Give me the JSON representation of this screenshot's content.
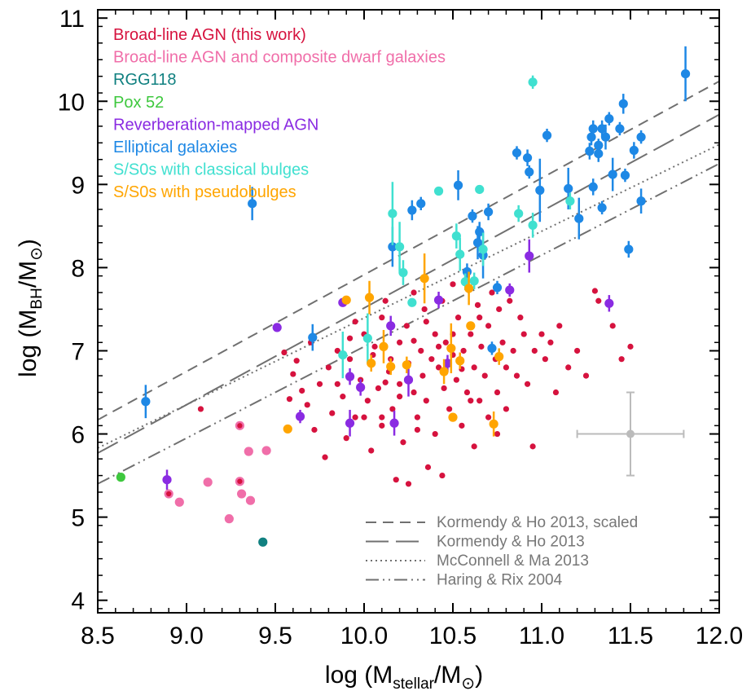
{
  "chart_data": {
    "type": "scatter",
    "xlabel": {
      "main": "log (M",
      "sub": "stellar",
      "mid": "/M",
      "sym": "⊙",
      "end": ")"
    },
    "ylabel": {
      "main": "log (M",
      "sub": "BH",
      "mid": "/M",
      "sym": "⊙",
      "end": ")"
    },
    "xlim": [
      8.5,
      12.0
    ],
    "ylim": [
      3.85,
      11.1
    ],
    "xticks": [
      "8.5",
      "9.0",
      "9.5",
      "10.0",
      "10.5",
      "11.0",
      "11.5",
      "12.0"
    ],
    "yticks": [
      "4",
      "5",
      "6",
      "7",
      "8",
      "9",
      "10",
      "11"
    ],
    "grid": false,
    "legend_position": "top-left",
    "legend": [
      {
        "label": "Broad-line AGN (this work)",
        "color": "#d6123e"
      },
      {
        "label": "Broad-line AGN and composite dwarf galaxies",
        "color": "#f06ea9"
      },
      {
        "label": "RGG118",
        "color": "#108080"
      },
      {
        "label": "Pox 52",
        "color": "#3ec83e"
      },
      {
        "label": "Reverberation-mapped AGN",
        "color": "#8a2be2"
      },
      {
        "label": "Elliptical galaxies",
        "color": "#1e88e5"
      },
      {
        "label": "S/S0s with classical bulges",
        "color": "#40e0d0"
      },
      {
        "label": "S/S0s with pseudobulges",
        "color": "#ffa500"
      }
    ],
    "relations": [
      {
        "label": "Kormendy & Ho 2013, scaled",
        "style": "short-dash",
        "points": [
          [
            8.5,
            6.17
          ],
          [
            12.0,
            10.24
          ]
        ]
      },
      {
        "label": "Kormendy & Ho 2013",
        "style": "long-dash",
        "points": [
          [
            8.5,
            5.77
          ],
          [
            12.0,
            9.84
          ]
        ]
      },
      {
        "label": "McConnell & Ma 2013",
        "style": "dotted",
        "points": [
          [
            8.5,
            5.83
          ],
          [
            12.0,
            9.48
          ]
        ]
      },
      {
        "label": "Haring & Rix 2004",
        "style": "dash-dot-dot",
        "points": [
          [
            8.5,
            5.4
          ],
          [
            12.0,
            9.25
          ]
        ]
      }
    ],
    "typical_error": {
      "x": 11.5,
      "y": 6.0,
      "xerr": 0.3,
      "yerr": 0.5,
      "color": "#bbbbbb"
    },
    "series": [
      {
        "name": "Broad-line AGN (this work)",
        "color": "#d6123e",
        "points": [
          [
            9.08,
            6.3
          ],
          [
            9.3,
            6.1
          ],
          [
            9.55,
            6.98
          ],
          [
            9.58,
            6.42
          ],
          [
            9.6,
            6.72
          ],
          [
            9.62,
            6.88
          ],
          [
            9.65,
            6.52
          ],
          [
            9.68,
            6.35
          ],
          [
            9.7,
            7.1
          ],
          [
            9.72,
            6.05
          ],
          [
            9.75,
            6.6
          ],
          [
            9.78,
            5.72
          ],
          [
            9.8,
            6.8
          ],
          [
            9.82,
            6.25
          ],
          [
            9.85,
            7.0
          ],
          [
            9.88,
            6.45
          ],
          [
            9.9,
            5.95
          ],
          [
            9.92,
            6.9
          ],
          [
            9.95,
            7.35
          ],
          [
            9.95,
            6.2
          ],
          [
            9.98,
            6.65
          ],
          [
            10.0,
            7.2
          ],
          [
            10.02,
            6.4
          ],
          [
            10.04,
            5.8
          ],
          [
            10.05,
            6.95
          ],
          [
            10.06,
            7.05
          ],
          [
            10.08,
            6.55
          ],
          [
            10.1,
            7.4
          ],
          [
            10.1,
            6.1
          ],
          [
            10.12,
            7.6
          ],
          [
            10.14,
            6.75
          ],
          [
            10.16,
            6.3
          ],
          [
            10.18,
            5.45
          ],
          [
            10.2,
            7.1
          ],
          [
            10.2,
            6.6
          ],
          [
            10.22,
            5.9
          ],
          [
            10.24,
            7.3
          ],
          [
            10.25,
            6.85
          ],
          [
            10.25,
            5.4
          ],
          [
            10.28,
            6.5
          ],
          [
            10.28,
            7.7
          ],
          [
            10.3,
            6.2
          ],
          [
            10.32,
            7.0
          ],
          [
            10.33,
            6.7
          ],
          [
            10.34,
            7.5
          ],
          [
            10.35,
            6.4
          ],
          [
            10.36,
            5.6
          ],
          [
            10.38,
            6.9
          ],
          [
            10.4,
            7.2
          ],
          [
            10.4,
            6.0
          ],
          [
            10.42,
            6.8
          ],
          [
            10.44,
            7.6
          ],
          [
            10.44,
            5.5
          ],
          [
            10.45,
            6.55
          ],
          [
            10.46,
            7.1
          ],
          [
            10.48,
            6.3
          ],
          [
            10.5,
            7.8
          ],
          [
            10.5,
            6.95
          ],
          [
            10.52,
            6.65
          ],
          [
            10.53,
            7.4
          ],
          [
            10.55,
            6.1
          ],
          [
            10.56,
            7.0
          ],
          [
            10.58,
            6.5
          ],
          [
            10.58,
            7.9
          ],
          [
            10.6,
            7.2
          ],
          [
            10.62,
            6.8
          ],
          [
            10.62,
            5.85
          ],
          [
            10.64,
            7.55
          ],
          [
            10.65,
            6.4
          ],
          [
            10.66,
            7.05
          ],
          [
            10.68,
            6.7
          ],
          [
            10.7,
            7.3
          ],
          [
            10.7,
            6.2
          ],
          [
            10.72,
            7.7
          ],
          [
            10.74,
            6.9
          ],
          [
            10.75,
            6.5
          ],
          [
            10.76,
            7.5
          ],
          [
            10.78,
            7.1
          ],
          [
            10.8,
            6.8
          ],
          [
            10.8,
            6.3
          ],
          [
            10.82,
            7.6
          ],
          [
            10.84,
            7.0
          ],
          [
            10.86,
            6.7
          ],
          [
            10.88,
            7.4
          ],
          [
            10.9,
            7.2
          ],
          [
            10.92,
            6.6
          ],
          [
            10.95,
            5.85
          ],
          [
            10.96,
            7.0
          ],
          [
            11.0,
            7.2
          ],
          [
            11.02,
            6.9
          ],
          [
            11.05,
            7.1
          ],
          [
            11.08,
            6.5
          ],
          [
            11.1,
            7.3
          ],
          [
            11.15,
            6.8
          ],
          [
            11.2,
            7.0
          ],
          [
            11.25,
            6.7
          ],
          [
            11.3,
            7.72
          ],
          [
            11.32,
            7.6
          ],
          [
            11.4,
            7.3
          ],
          [
            11.45,
            6.9
          ],
          [
            11.5,
            7.05
          ],
          [
            10.1,
            6.2
          ],
          [
            10.15,
            6.9
          ],
          [
            10.3,
            6.05
          ],
          [
            10.2,
            6.45
          ],
          [
            9.85,
            6.6
          ],
          [
            10.0,
            6.2
          ],
          [
            10.6,
            6.4
          ],
          [
            10.5,
            7.2
          ],
          [
            10.35,
            7.35
          ],
          [
            10.65,
            7.4
          ],
          [
            10.75,
            6.0
          ],
          [
            10.42,
            7.05
          ],
          [
            9.92,
            7.15
          ],
          [
            10.12,
            6.62
          ],
          [
            10.28,
            7.12
          ],
          [
            10.55,
            6.78
          ]
        ]
      },
      {
        "name": "Broad-line AGN and composite dwarf galaxies",
        "color": "#f06ea9",
        "points": [
          [
            8.9,
            5.28
          ],
          [
            8.96,
            5.18
          ],
          [
            9.12,
            5.42
          ],
          [
            9.24,
            4.98
          ],
          [
            9.3,
            5.43
          ],
          [
            9.3,
            6.1
          ],
          [
            9.31,
            5.28
          ],
          [
            9.35,
            5.79
          ],
          [
            9.36,
            5.2
          ],
          [
            9.45,
            5.8
          ]
        ],
        "ringed": [
          [
            8.9,
            5.28
          ],
          [
            9.3,
            5.43
          ],
          [
            9.3,
            6.1
          ]
        ]
      },
      {
        "name": "RGG118",
        "color": "#108080",
        "points": [
          [
            9.43,
            4.7
          ]
        ]
      },
      {
        "name": "Pox 52",
        "color": "#3ec83e",
        "points": [
          [
            8.63,
            5.48
          ]
        ]
      },
      {
        "name": "Reverberation-mapped AGN",
        "color": "#8a2be2",
        "points": [
          [
            8.89,
            5.45,
            0.12
          ],
          [
            9.51,
            7.28,
            0.05
          ],
          [
            9.64,
            6.21,
            0.08
          ],
          [
            9.88,
            7.58,
            0.05
          ],
          [
            9.92,
            6.69,
            0.1
          ],
          [
            9.92,
            6.13,
            0.16
          ],
          [
            9.98,
            6.56,
            0.1
          ],
          [
            10.15,
            7.3,
            0.12
          ],
          [
            10.17,
            6.13,
            0.15
          ],
          [
            10.25,
            6.65,
            0.2
          ],
          [
            10.42,
            7.61,
            0.1
          ],
          [
            10.47,
            6.85,
            0.1
          ],
          [
            10.93,
            8.14,
            0.2
          ],
          [
            11.38,
            7.57,
            0.1
          ],
          [
            10.82,
            7.73,
            0.08
          ]
        ]
      },
      {
        "name": "Elliptical galaxies",
        "color": "#1e88e5",
        "points": [
          [
            8.77,
            6.39,
            0.2
          ],
          [
            9.37,
            8.77,
            0.2
          ],
          [
            9.71,
            7.16,
            0.16
          ],
          [
            10.16,
            8.25,
            0.24
          ],
          [
            10.27,
            8.69,
            0.12
          ],
          [
            10.32,
            8.77,
            0.08
          ],
          [
            10.53,
            8.99,
            0.18
          ],
          [
            10.61,
            8.62,
            0.08
          ],
          [
            10.65,
            8.43,
            0.12
          ],
          [
            10.7,
            8.67,
            0.1
          ],
          [
            10.64,
            8.3,
            0.2
          ],
          [
            10.58,
            7.95,
            0.1
          ],
          [
            10.67,
            8.15,
            0.28
          ],
          [
            10.75,
            7.76,
            0.08
          ],
          [
            10.72,
            7.03,
            0.08
          ],
          [
            10.86,
            9.38,
            0.08
          ],
          [
            10.92,
            9.32,
            0.1
          ],
          [
            10.93,
            9.15,
            0.08
          ],
          [
            10.99,
            8.93,
            0.38
          ],
          [
            11.03,
            9.59,
            0.08
          ],
          [
            11.15,
            8.95,
            0.25
          ],
          [
            11.21,
            8.59,
            0.25
          ],
          [
            11.27,
            9.4,
            0.1
          ],
          [
            11.28,
            9.57,
            0.1
          ],
          [
            11.29,
            9.67,
            0.1
          ],
          [
            11.32,
            9.47,
            0.08
          ],
          [
            11.34,
            9.67,
            0.1
          ],
          [
            11.32,
            9.37,
            0.1
          ],
          [
            11.34,
            8.72,
            0.08
          ],
          [
            11.36,
            9.57,
            0.15
          ],
          [
            11.38,
            9.79,
            0.08
          ],
          [
            11.4,
            9.12,
            0.2
          ],
          [
            11.44,
            9.67,
            0.08
          ],
          [
            11.46,
            9.97,
            0.12
          ],
          [
            11.47,
            9.11,
            0.08
          ],
          [
            11.52,
            9.41,
            0.1
          ],
          [
            11.56,
            9.57,
            0.08
          ],
          [
            11.56,
            8.8,
            0.15
          ],
          [
            11.49,
            8.22,
            0.1
          ],
          [
            11.81,
            10.33,
            0.33
          ],
          [
            11.29,
            8.97,
            0.1
          ]
        ]
      },
      {
        "name": "S/S0s with classical bulges",
        "color": "#40e0d0",
        "points": [
          [
            9.88,
            6.95,
            0.28
          ],
          [
            10.02,
            7.15,
            0.3
          ],
          [
            10.16,
            8.65,
            0.38
          ],
          [
            10.2,
            8.25,
            0.3
          ],
          [
            10.22,
            7.94,
            0.15
          ],
          [
            10.27,
            7.58,
            0.05
          ],
          [
            10.42,
            8.92,
            0.05
          ],
          [
            10.52,
            8.38,
            0.15
          ],
          [
            10.54,
            8.16,
            0.2
          ],
          [
            10.57,
            7.83,
            0.1
          ],
          [
            10.62,
            7.84,
            0.1
          ],
          [
            10.65,
            8.94,
            0.05
          ],
          [
            10.67,
            8.22,
            0.2
          ],
          [
            10.87,
            8.65,
            0.1
          ],
          [
            10.95,
            8.51,
            0.15
          ],
          [
            10.95,
            10.23,
            0.08
          ],
          [
            11.16,
            8.8,
            0.1
          ]
        ]
      },
      {
        "name": "S/S0s with pseudobulges",
        "color": "#ffa500",
        "points": [
          [
            9.57,
            6.06,
            0.05
          ],
          [
            9.9,
            7.61,
            0.05
          ],
          [
            10.03,
            7.64,
            0.2
          ],
          [
            10.04,
            6.85,
            0.1
          ],
          [
            10.11,
            7.05,
            0.2
          ],
          [
            10.15,
            6.81,
            0.1
          ],
          [
            10.24,
            6.83,
            0.1
          ],
          [
            10.34,
            7.87,
            0.3
          ],
          [
            10.45,
            6.75,
            0.15
          ],
          [
            10.49,
            7.03,
            0.3
          ],
          [
            10.5,
            6.2,
            0.05
          ],
          [
            10.54,
            6.88,
            0.1
          ],
          [
            10.59,
            7.75,
            0.2
          ],
          [
            10.6,
            7.3,
            0.05
          ],
          [
            10.73,
            6.12,
            0.15
          ],
          [
            10.76,
            6.93,
            0.1
          ]
        ]
      }
    ]
  }
}
